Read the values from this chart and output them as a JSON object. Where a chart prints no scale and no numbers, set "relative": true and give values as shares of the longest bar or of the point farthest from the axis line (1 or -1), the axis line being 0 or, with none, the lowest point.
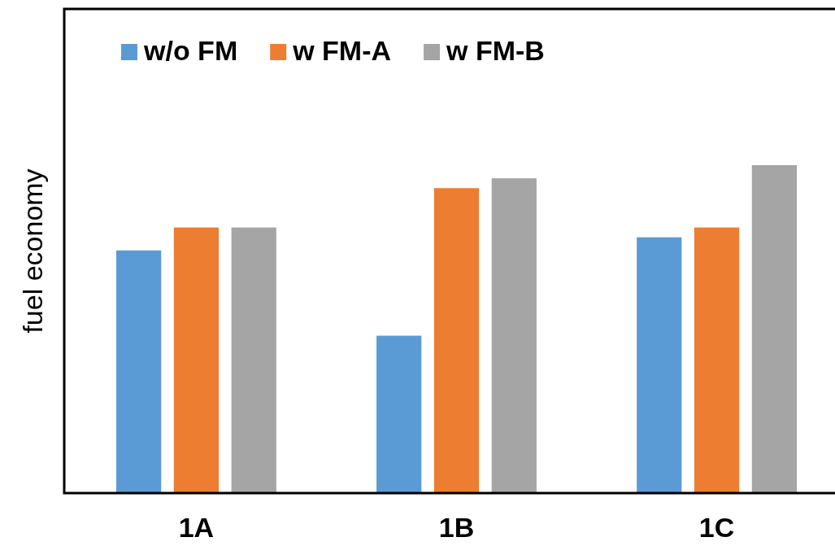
{
  "chart_data": {
    "type": "bar",
    "ylabel": "fuel economy",
    "categories": [
      "1A",
      "1B",
      "1C"
    ],
    "relative": true,
    "legend": "top left",
    "series": [
      {
        "name": "w/o FM",
        "color": "#5b9bd5",
        "values": [
          0.74,
          0.48,
          0.78
        ]
      },
      {
        "name": "w FM-A",
        "color": "#ed7d31",
        "values": [
          0.81,
          0.93,
          0.81
        ]
      },
      {
        "name": "w FM-B",
        "color": "#a5a5a5",
        "values": [
          0.81,
          0.96,
          1
        ]
      }
    ]
  }
}
